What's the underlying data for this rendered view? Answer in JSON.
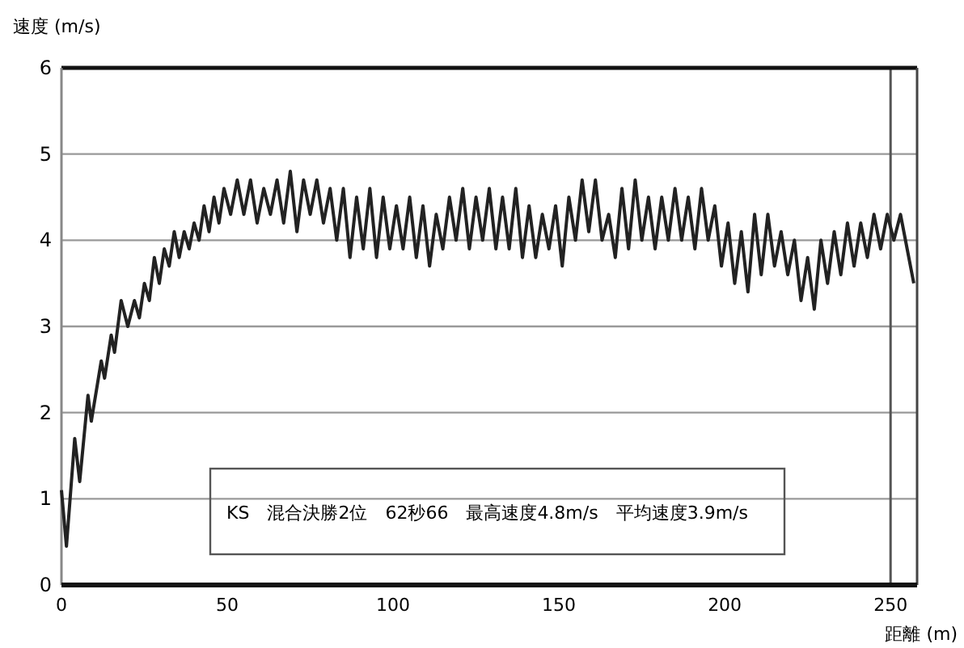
{
  "chart_data": {
    "type": "line",
    "xlabel": "距離 (m)",
    "ylabel": "速度 (m/s)",
    "annotations": [
      "KS　混合決勝2位　62秒66　最高速度4.8m/s　平均速度3.9m/s"
    ],
    "x": [
      0,
      1.5,
      4,
      5.5,
      8,
      9,
      12,
      13,
      15,
      16,
      18,
      20,
      22,
      23.5,
      25,
      26.5,
      28,
      29.5,
      31,
      32.5,
      34,
      35.5,
      37,
      38.5,
      40,
      41.5,
      43,
      44.5,
      46,
      47.5,
      49,
      51,
      53,
      55,
      57,
      59,
      61,
      63,
      65,
      67,
      69,
      71,
      73,
      75,
      77,
      79,
      81,
      83,
      85,
      87,
      89,
      91,
      93,
      95,
      97,
      99,
      101,
      103,
      105,
      107,
      109,
      111,
      113,
      115,
      117,
      119,
      121,
      123,
      125,
      127,
      129,
      131,
      133,
      135,
      137,
      139,
      141,
      143,
      145,
      147,
      149,
      151,
      153,
      155,
      157,
      159,
      161,
      163,
      165,
      167,
      169,
      171,
      173,
      175,
      177,
      179,
      181,
      183,
      185,
      187,
      189,
      191,
      193,
      195,
      197,
      199,
      201,
      203,
      205,
      207,
      209,
      211,
      213,
      215,
      217,
      219,
      221,
      223,
      225,
      227,
      229,
      231,
      233,
      235,
      237,
      239,
      241,
      243,
      245,
      247,
      249,
      251,
      253,
      255,
      257
    ],
    "values": [
      1.1,
      0.45,
      1.7,
      1.2,
      2.2,
      1.9,
      2.6,
      2.4,
      2.9,
      2.7,
      3.3,
      3.0,
      3.3,
      3.1,
      3.5,
      3.3,
      3.8,
      3.5,
      3.9,
      3.7,
      4.1,
      3.8,
      4.1,
      3.9,
      4.2,
      4.0,
      4.4,
      4.1,
      4.5,
      4.2,
      4.6,
      4.3,
      4.7,
      4.3,
      4.7,
      4.2,
      4.6,
      4.3,
      4.7,
      4.2,
      4.8,
      4.1,
      4.7,
      4.3,
      4.7,
      4.2,
      4.6,
      4.0,
      4.6,
      3.8,
      4.5,
      3.9,
      4.6,
      3.8,
      4.5,
      3.9,
      4.4,
      3.9,
      4.5,
      3.8,
      4.4,
      3.7,
      4.3,
      3.9,
      4.5,
      4.0,
      4.6,
      3.9,
      4.5,
      4.0,
      4.6,
      3.9,
      4.5,
      3.9,
      4.6,
      3.8,
      4.4,
      3.8,
      4.3,
      3.9,
      4.4,
      3.7,
      4.5,
      4.0,
      4.7,
      4.1,
      4.7,
      4.0,
      4.3,
      3.8,
      4.6,
      3.9,
      4.7,
      4.0,
      4.5,
      3.9,
      4.5,
      4.0,
      4.6,
      4.0,
      4.5,
      3.9,
      4.6,
      4.0,
      4.4,
      3.7,
      4.2,
      3.5,
      4.1,
      3.4,
      4.3,
      3.6,
      4.3,
      3.7,
      4.1,
      3.6,
      4.0,
      3.3,
      3.8,
      3.2,
      4.0,
      3.5,
      4.1,
      3.6,
      4.2,
      3.7,
      4.2,
      3.8,
      4.3,
      3.9,
      4.3,
      4.0,
      4.3,
      3.9,
      3.5
    ],
    "color": "#222222",
    "xlim": [
      0,
      258
    ],
    "xticks": [
      0,
      50,
      100,
      150,
      200,
      250
    ],
    "ylim": [
      0,
      6
    ],
    "yticks": [
      0,
      1,
      2,
      3,
      4,
      5,
      6
    ],
    "grid": "y",
    "ref_lines": [
      {
        "axis": "x",
        "value": 250
      }
    ]
  }
}
